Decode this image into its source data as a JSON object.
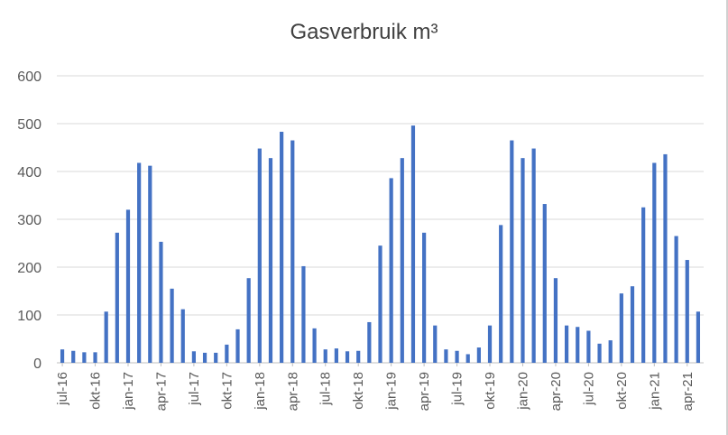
{
  "chart_data": {
    "type": "bar",
    "title": "Gasverbruik m³",
    "xlabel": "",
    "ylabel": "",
    "ylim": [
      0,
      600
    ],
    "yticks": [
      0,
      100,
      200,
      300,
      400,
      500,
      600
    ],
    "grid": true,
    "legend": "none",
    "colors": {
      "bar": "#4472C4",
      "grid": "#d9d9d9",
      "text": "#595959"
    },
    "categories": [
      "jul-16",
      "aug-16",
      "sep-16",
      "okt-16",
      "nov-16",
      "dec-16",
      "jan-17",
      "feb-17",
      "mrt-17",
      "apr-17",
      "mei-17",
      "jun-17",
      "jul-17",
      "aug-17",
      "sep-17",
      "okt-17",
      "nov-17",
      "dec-17",
      "jan-18",
      "feb-18",
      "mrt-18",
      "apr-18",
      "mei-18",
      "jun-18",
      "jul-18",
      "aug-18",
      "sep-18",
      "okt-18",
      "nov-18",
      "dec-18",
      "jan-19",
      "feb-19",
      "mrt-19",
      "apr-19",
      "mei-19",
      "jun-19",
      "jul-19",
      "aug-19",
      "sep-19",
      "okt-19",
      "nov-19",
      "dec-19",
      "jan-20",
      "feb-20",
      "mrt-20",
      "apr-20",
      "mei-20",
      "jun-20",
      "jul-20",
      "aug-20",
      "sep-20",
      "okt-20",
      "nov-20",
      "dec-20",
      "jan-21",
      "feb-21",
      "mrt-21",
      "apr-21",
      "mei-21"
    ],
    "tick_labels": [
      "jul-16",
      "okt-16",
      "jan-17",
      "apr-17",
      "jul-17",
      "okt-17",
      "jan-18",
      "apr-18",
      "jul-18",
      "okt-18",
      "jan-19",
      "apr-19",
      "jul-19",
      "okt-19",
      "jan-20",
      "apr-20",
      "jul-20",
      "okt-20",
      "jan-21",
      "apr-21"
    ],
    "values": [
      28,
      25,
      22,
      22,
      107,
      272,
      320,
      418,
      412,
      253,
      155,
      112,
      24,
      21,
      21,
      38,
      70,
      177,
      448,
      428,
      483,
      465,
      202,
      72,
      28,
      30,
      24,
      25,
      85,
      245,
      386,
      428,
      496,
      272,
      78,
      28,
      25,
      18,
      32,
      78,
      288,
      465,
      428,
      448,
      332,
      177,
      78,
      75,
      67,
      40,
      47,
      145,
      160,
      325,
      418,
      436,
      265,
      215,
      107
    ]
  }
}
